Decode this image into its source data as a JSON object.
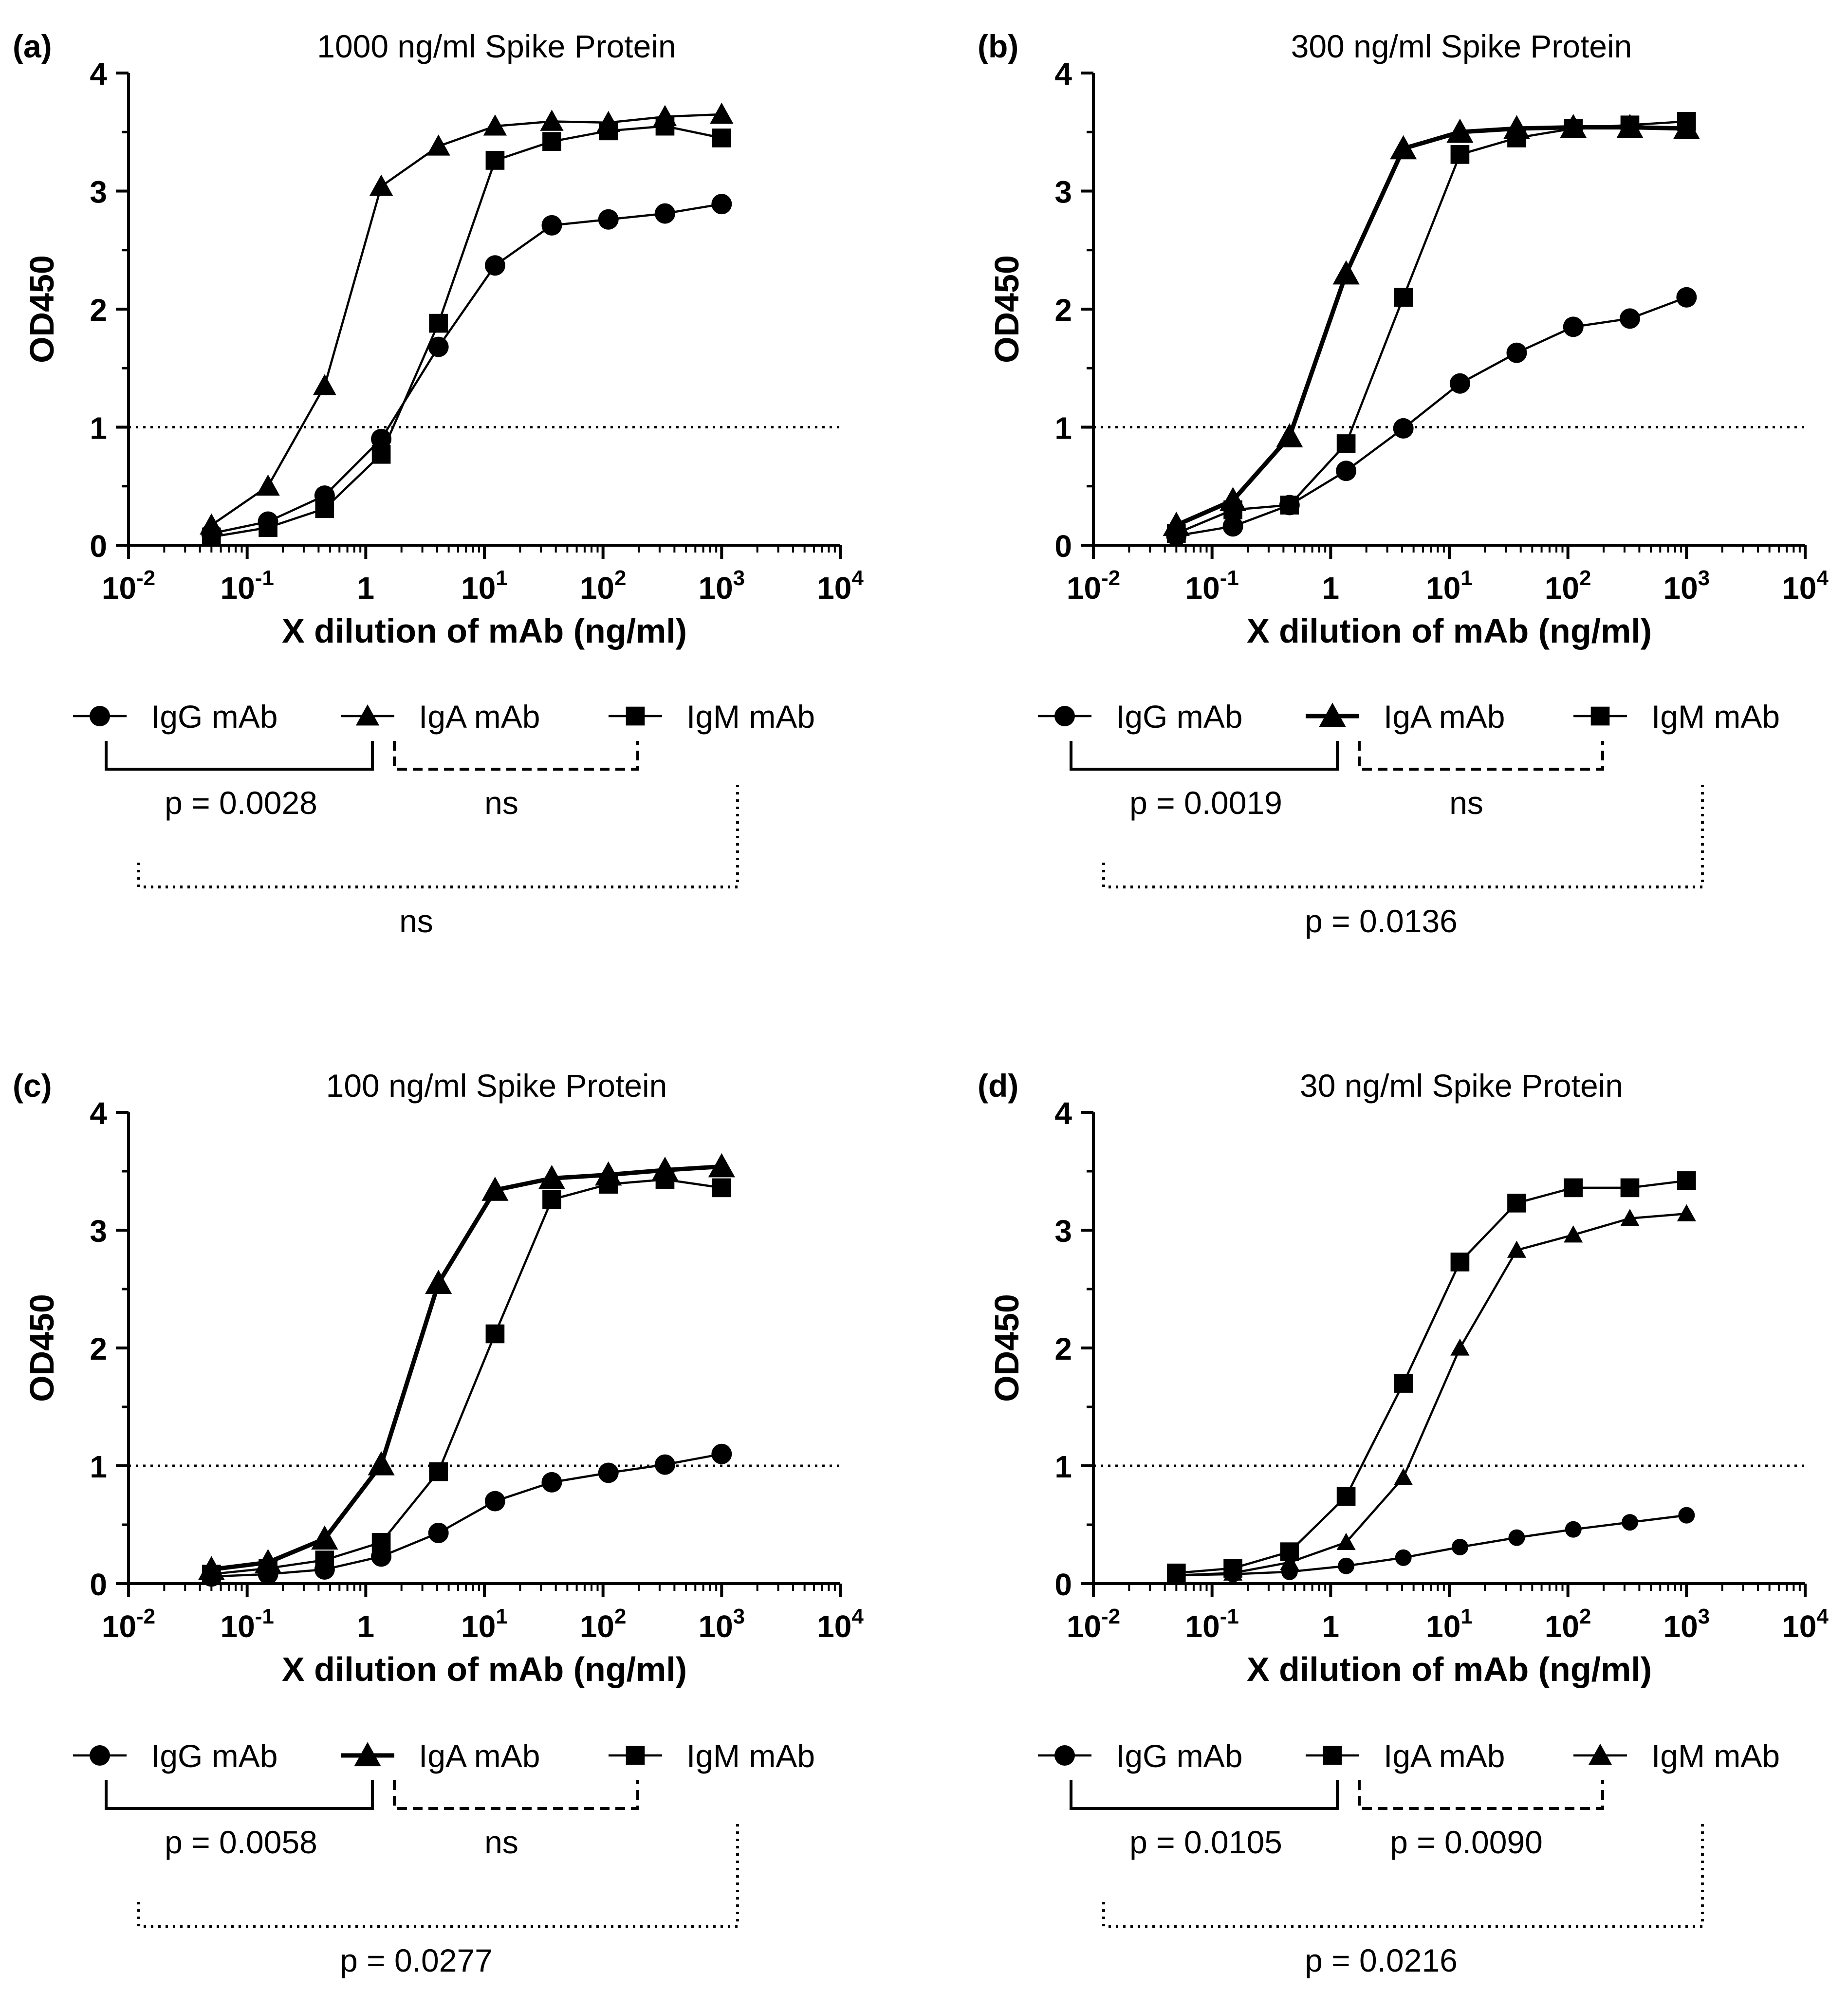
{
  "chart_data": [
    {
      "type": "line",
      "panel_label": "(a)",
      "title": "1000 ng/ml Spike Protein",
      "xlabel": "X dilution of mAb (ng/ml)",
      "ylabel": "OD450",
      "xscale": "log",
      "xlim": [
        0.01,
        10000
      ],
      "ylim": [
        0,
        4
      ],
      "yticks": [
        "0",
        "1",
        "2",
        "3",
        "4"
      ],
      "xticks": [
        {
          "base": "10",
          "exp": "-2"
        },
        {
          "base": "10",
          "exp": "-1"
        },
        {
          "base": "1",
          "exp": ""
        },
        {
          "base": "10",
          "exp": "1"
        },
        {
          "base": "10",
          "exp": "2"
        },
        {
          "base": "10",
          "exp": "3"
        },
        {
          "base": "10",
          "exp": "4"
        }
      ],
      "reference_line": 1,
      "x": [
        0.05,
        0.15,
        0.45,
        1.35,
        4.1,
        12.3,
        37,
        111,
        333,
        1000
      ],
      "series": [
        {
          "name": "IgG mAb",
          "marker": "circle",
          "bold": false,
          "values": [
            0.1,
            0.2,
            0.42,
            0.9,
            1.68,
            2.37,
            2.71,
            2.76,
            2.81,
            2.89
          ]
        },
        {
          "name": "IgA mAb",
          "marker": "triangle",
          "bold": false,
          "values": [
            0.17,
            0.5,
            1.35,
            3.04,
            3.38,
            3.55,
            3.59,
            3.58,
            3.63,
            3.65
          ]
        },
        {
          "name": "IgM mAb",
          "marker": "square",
          "bold": false,
          "values": [
            0.07,
            0.15,
            0.31,
            0.77,
            1.88,
            3.26,
            3.42,
            3.51,
            3.55,
            3.45
          ]
        }
      ],
      "legend": [
        "IgG mAb",
        "IgA mAb",
        "IgM mAb"
      ],
      "comparisons": {
        "first": "p = 0.0028",
        "second": "ns",
        "outer": "ns"
      }
    },
    {
      "type": "line",
      "panel_label": "(b)",
      "title": "300 ng/ml Spike Protein",
      "xlabel": "X dilution of mAb (ng/ml)",
      "ylabel": "OD450",
      "xscale": "log",
      "xlim": [
        0.01,
        10000
      ],
      "ylim": [
        0,
        4
      ],
      "yticks": [
        "0",
        "1",
        "2",
        "3",
        "4"
      ],
      "xticks": [
        {
          "base": "10",
          "exp": "-2"
        },
        {
          "base": "10",
          "exp": "-1"
        },
        {
          "base": "1",
          "exp": ""
        },
        {
          "base": "10",
          "exp": "1"
        },
        {
          "base": "10",
          "exp": "2"
        },
        {
          "base": "10",
          "exp": "3"
        },
        {
          "base": "10",
          "exp": "4"
        }
      ],
      "reference_line": 1,
      "x": [
        0.05,
        0.15,
        0.45,
        1.35,
        4.1,
        12.3,
        37,
        111,
        333,
        1000
      ],
      "series": [
        {
          "name": "IgG mAb",
          "marker": "circle",
          "bold": false,
          "values": [
            0.08,
            0.16,
            0.34,
            0.63,
            0.99,
            1.37,
            1.63,
            1.85,
            1.92,
            2.1
          ]
        },
        {
          "name": "IgA mAb",
          "marker": "triangle",
          "bold": true,
          "values": [
            0.17,
            0.38,
            0.92,
            2.3,
            3.36,
            3.5,
            3.53,
            3.54,
            3.54,
            3.53
          ]
        },
        {
          "name": "IgM mAb",
          "marker": "square",
          "bold": false,
          "values": [
            0.1,
            0.3,
            0.34,
            0.86,
            2.1,
            3.31,
            3.45,
            3.53,
            3.56,
            3.59
          ]
        }
      ],
      "legend": [
        "IgG mAb",
        "IgA mAb",
        "IgM mAb"
      ],
      "comparisons": {
        "first": "p = 0.0019",
        "second": "ns",
        "outer": "p = 0.0136"
      }
    },
    {
      "type": "line",
      "panel_label": "(c)",
      "title": "100 ng/ml Spike Protein",
      "xlabel": "X dilution of mAb (ng/ml)",
      "ylabel": "OD450",
      "xscale": "log",
      "xlim": [
        0.01,
        10000
      ],
      "ylim": [
        0,
        4
      ],
      "yticks": [
        "0",
        "1",
        "2",
        "3",
        "4"
      ],
      "xticks": [
        {
          "base": "10",
          "exp": "-2"
        },
        {
          "base": "10",
          "exp": "-1"
        },
        {
          "base": "1",
          "exp": ""
        },
        {
          "base": "10",
          "exp": "1"
        },
        {
          "base": "10",
          "exp": "2"
        },
        {
          "base": "10",
          "exp": "3"
        },
        {
          "base": "10",
          "exp": "4"
        }
      ],
      "reference_line": 1,
      "x": [
        0.05,
        0.15,
        0.45,
        1.35,
        4.1,
        12.3,
        37,
        111,
        333,
        1000
      ],
      "series": [
        {
          "name": "IgG mAb",
          "marker": "circle",
          "bold": false,
          "values": [
            0.06,
            0.08,
            0.12,
            0.23,
            0.43,
            0.7,
            0.86,
            0.94,
            1.01,
            1.1
          ]
        },
        {
          "name": "IgA mAb",
          "marker": "triangle",
          "bold": true,
          "values": [
            0.12,
            0.18,
            0.38,
            1.01,
            2.55,
            3.34,
            3.44,
            3.47,
            3.51,
            3.54
          ]
        },
        {
          "name": "IgM mAb",
          "marker": "square",
          "bold": false,
          "values": [
            0.08,
            0.13,
            0.2,
            0.35,
            0.95,
            2.12,
            3.26,
            3.39,
            3.43,
            3.36
          ]
        }
      ],
      "legend": [
        "IgG mAb",
        "IgA mAb",
        "IgM mAb"
      ],
      "comparisons": {
        "first": "p = 0.0058",
        "second": "ns",
        "outer": "p = 0.0277"
      }
    },
    {
      "type": "line",
      "panel_label": "(d)",
      "title": "30 ng/ml Spike Protein",
      "xlabel": "X dilution of mAb (ng/ml)",
      "ylabel": "OD450",
      "xscale": "log",
      "xlim": [
        0.01,
        10000
      ],
      "ylim": [
        0,
        4
      ],
      "yticks": [
        "0",
        "1",
        "2",
        "3",
        "4"
      ],
      "xticks": [
        {
          "base": "10",
          "exp": "-2"
        },
        {
          "base": "10",
          "exp": "-1"
        },
        {
          "base": "1",
          "exp": ""
        },
        {
          "base": "10",
          "exp": "1"
        },
        {
          "base": "10",
          "exp": "2"
        },
        {
          "base": "10",
          "exp": "3"
        },
        {
          "base": "10",
          "exp": "4"
        }
      ],
      "reference_line": 1,
      "x": [
        0.05,
        0.15,
        0.45,
        1.35,
        4.1,
        12.3,
        37,
        111,
        333,
        1000
      ],
      "series": [
        {
          "name": "IgG mAb",
          "marker": "circle",
          "bold": false,
          "values": [
            0.07,
            0.08,
            0.1,
            0.15,
            0.22,
            0.31,
            0.39,
            0.46,
            0.52,
            0.58
          ]
        },
        {
          "name": "IgA mAb",
          "marker": "square",
          "bold": false,
          "values": [
            0.09,
            0.13,
            0.27,
            0.74,
            1.7,
            2.73,
            3.23,
            3.36,
            3.36,
            3.42
          ]
        },
        {
          "name": "IgM mAb",
          "marker": "triangle",
          "bold": false,
          "values": [
            0.07,
            0.09,
            0.18,
            0.35,
            0.9,
            2.0,
            2.83,
            2.96,
            3.1,
            3.14
          ]
        }
      ],
      "legend": [
        "IgG mAb",
        "IgA mAb",
        "IgM mAb"
      ],
      "comparisons": {
        "first": "p = 0.0105",
        "second": "p = 0.0090",
        "outer": "p = 0.0216"
      }
    }
  ]
}
